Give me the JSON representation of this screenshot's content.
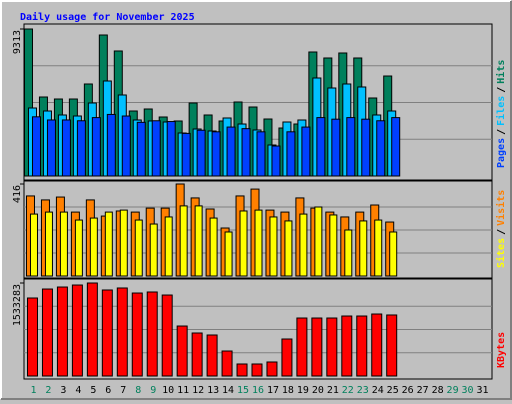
{
  "chart_data": {
    "type": "bar",
    "title": "Daily usage for November 2025",
    "categories": [
      "1",
      "2",
      "3",
      "4",
      "5",
      "6",
      "7",
      "8",
      "9",
      "10",
      "11",
      "12",
      "13",
      "14",
      "15",
      "16",
      "17",
      "18",
      "19",
      "20",
      "21",
      "22",
      "23",
      "24",
      "25",
      "26",
      "27",
      "28",
      "29",
      "30",
      "31"
    ],
    "category_colors": [
      "#00805c",
      "#00805c",
      "#000000",
      "#000000",
      "#000000",
      "#000000",
      "#000000",
      "#00805c",
      "#00805c",
      "#000000",
      "#000000",
      "#000000",
      "#000000",
      "#000000",
      "#00805c",
      "#00805c",
      "#000000",
      "#000000",
      "#000000",
      "#000000",
      "#000000",
      "#00805c",
      "#00805c",
      "#000000",
      "#000000",
      "#000000",
      "#000000",
      "#000000",
      "#00805c",
      "#00805c",
      "#000000"
    ],
    "label_separator": "/",
    "panels": [
      {
        "ylim": [
          0,
          9313
        ],
        "yticks": [
          9313
        ],
        "series": [
          {
            "name": "Hits",
            "color": "#00805c",
            "values": [
              9313,
              5005,
              4878,
              4878,
              5829,
              8933,
              7920,
              4118,
              4245,
              3738,
              3485,
              4625,
              3865,
              3485,
              4688,
              4371,
              3611,
              3041,
              3294,
              7856,
              7476,
              7793,
              7476,
              4942,
              6335,
              null,
              null,
              null,
              null,
              null,
              null
            ]
          },
          {
            "name": "Files",
            "color": "#00c0ff",
            "values": [
              4308,
              4118,
              3865,
              3801,
              4625,
              6019,
              5132,
              3548,
              3485,
              3421,
              2724,
              2978,
              2851,
              3675,
              3294,
              2914,
              1964,
              3421,
              3548,
              6209,
              5575,
              5829,
              5639,
              3865,
              4118,
              null,
              null,
              null,
              null,
              null,
              null
            ]
          },
          {
            "name": "Pages",
            "color": "#0040ff",
            "values": [
              3750,
              3550,
              3550,
              3500,
              3700,
              3900,
              3800,
              3400,
              3500,
              3450,
              2700,
              2900,
              2800,
              3100,
              3000,
              2800,
              1900,
              2800,
              3100,
              3700,
              3600,
              3700,
              3600,
              3500,
              3700,
              null,
              null,
              null,
              null,
              null,
              null
            ]
          }
        ]
      },
      {
        "ylim": [
          0,
          416
        ],
        "yticks": [
          416
        ],
        "series": [
          {
            "name": "Visits",
            "color": "#ff8000",
            "values": [
              362,
              344,
              357,
              289,
              344,
              271,
              294,
              289,
              307,
              307,
              416,
              353,
              303,
              217,
              362,
              393,
              298,
              289,
              353,
              307,
              289,
              267,
              289,
              321,
              244,
              null,
              null,
              null,
              null,
              null,
              null
            ]
          },
          {
            "name": "Sites",
            "color": "#ffff00",
            "values": [
              280,
              289,
              289,
              253,
              262,
              289,
              298,
              253,
              235,
              267,
              317,
              317,
              262,
              199,
              294,
              298,
              267,
              249,
              280,
              312,
              276,
              208,
              249,
              253,
              199,
              null,
              null,
              null,
              null,
              null,
              null
            ]
          }
        ]
      },
      {
        "ylim": [
          0,
          1533283
        ],
        "yticks": [
          1533283
        ],
        "series": [
          {
            "name": "KBytes",
            "color": "#ff0000",
            "values": [
              1286000,
              1434000,
              1467000,
              1500000,
              1533283,
              1418000,
              1451000,
              1368000,
              1385000,
              1335000,
              824000,
              709000,
              676000,
              412000,
              198000,
              198000,
              231000,
              610000,
              956000,
              956000,
              956000,
              989000,
              989000,
              1022000,
              1006000,
              null,
              null,
              null,
              null,
              null,
              null
            ]
          }
        ]
      }
    ]
  }
}
